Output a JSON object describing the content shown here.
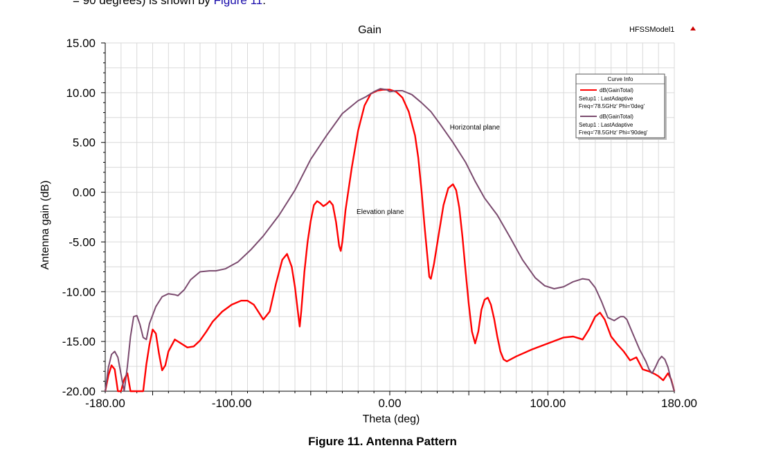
{
  "top_text": {
    "prefix": "= 90 degrees) is shown by ",
    "link": "Figure 11",
    "suffix": "."
  },
  "model_name": "HFSSModel1",
  "caption": "Figure 11. Antenna Pattern",
  "colors": {
    "elevation": "#ff0000",
    "horizontal": "#7a4a6e",
    "grid": "#d9d9d9",
    "link": "#1a0dab"
  },
  "chart_data": {
    "type": "line",
    "title": "Gain",
    "xlabel": "Theta (deg)",
    "ylabel": "Antenna gain (dB)",
    "xlim": [
      -180,
      180
    ],
    "ylim": [
      -20,
      15
    ],
    "xticks": [
      -180,
      -100,
      0,
      100,
      180
    ],
    "xtick_labels": [
      "-180.00",
      "-100.00",
      "0.00",
      "100.00",
      "180.00"
    ],
    "yticks": [
      15,
      10,
      5,
      0,
      -5,
      -10,
      -15,
      -20
    ],
    "ytick_labels": [
      "15.00",
      "10.00",
      "5.00",
      "0.00",
      "-5.00",
      "-10.00",
      "-15.00",
      "-20.00"
    ],
    "grid": true,
    "legend": {
      "title": "Curve Info",
      "placement": "top-right",
      "entries": [
        {
          "lines": [
            "dB(GainTotal)",
            "Setup1 : LastAdaptive",
            "Freq='78.5GHz' Phi='0deg'"
          ]
        },
        {
          "lines": [
            "dB(GainTotal)",
            "Setup1 : LastAdaptive",
            "Freq='78.5GHz' Phi='90deg'"
          ]
        }
      ]
    },
    "annotations": [
      {
        "text": "Horizontal plane",
        "x": 38,
        "y": 6.3
      },
      {
        "text": "Elevation plane",
        "x": -21,
        "y": -2.2
      }
    ],
    "series": [
      {
        "points": [
          [
            -180,
            -20
          ],
          [
            -178,
            -18.4
          ],
          [
            -176,
            -17.4
          ],
          [
            -174,
            -17.8
          ],
          [
            -172,
            -20
          ],
          [
            -170,
            -20
          ],
          [
            -168,
            -18.8
          ],
          [
            -166,
            -18.2
          ],
          [
            -164,
            -20
          ],
          [
            -162,
            -20
          ],
          [
            -156,
            -20
          ],
          [
            -154,
            -17.3
          ],
          [
            -152,
            -15.3
          ],
          [
            -150,
            -13.8
          ],
          [
            -148,
            -14.2
          ],
          [
            -146,
            -16.2
          ],
          [
            -144,
            -17.9
          ],
          [
            -142,
            -17.4
          ],
          [
            -140,
            -16
          ],
          [
            -136,
            -14.8
          ],
          [
            -134,
            -15
          ],
          [
            -128,
            -15.6
          ],
          [
            -124,
            -15.5
          ],
          [
            -120,
            -14.9
          ],
          [
            -116,
            -14
          ],
          [
            -112,
            -13
          ],
          [
            -106,
            -12
          ],
          [
            -100,
            -11.3
          ],
          [
            -94,
            -10.9
          ],
          [
            -90,
            -10.9
          ],
          [
            -86,
            -11.3
          ],
          [
            -82,
            -12.3
          ],
          [
            -80,
            -12.8
          ],
          [
            -76,
            -12
          ],
          [
            -72,
            -9.2
          ],
          [
            -68,
            -6.8
          ],
          [
            -65,
            -6.2
          ],
          [
            -62,
            -7.5
          ],
          [
            -60,
            -9.5
          ],
          [
            -58,
            -12.2
          ],
          [
            -57,
            -13.5
          ],
          [
            -56,
            -12
          ],
          [
            -54,
            -8
          ],
          [
            -52,
            -5
          ],
          [
            -50,
            -2.9
          ],
          [
            -48,
            -1.3
          ],
          [
            -46,
            -0.9
          ],
          [
            -44,
            -1.1
          ],
          [
            -42,
            -1.4
          ],
          [
            -40,
            -1.2
          ],
          [
            -38,
            -0.9
          ],
          [
            -36,
            -1.3
          ],
          [
            -34,
            -3
          ],
          [
            -32,
            -5.4
          ],
          [
            -31,
            -5.9
          ],
          [
            -30,
            -5
          ],
          [
            -28,
            -1.8
          ],
          [
            -24,
            2.5
          ],
          [
            -20,
            6.2
          ],
          [
            -16,
            8.7
          ],
          [
            -12,
            9.9
          ],
          [
            -8,
            10.2
          ],
          [
            -4,
            10.3
          ],
          [
            0,
            10.3
          ],
          [
            4,
            10.1
          ],
          [
            8,
            9.5
          ],
          [
            12,
            8.1
          ],
          [
            16,
            5.7
          ],
          [
            18,
            3.5
          ],
          [
            20,
            0.3
          ],
          [
            22,
            -3.4
          ],
          [
            24,
            -6.8
          ],
          [
            25,
            -8.5
          ],
          [
            26,
            -8.7
          ],
          [
            28,
            -7.2
          ],
          [
            31,
            -4.2
          ],
          [
            34,
            -1.3
          ],
          [
            37,
            0.4
          ],
          [
            40,
            0.8
          ],
          [
            42,
            0.2
          ],
          [
            44,
            -1.6
          ],
          [
            46,
            -4.5
          ],
          [
            48,
            -8
          ],
          [
            50,
            -11.3
          ],
          [
            52,
            -14
          ],
          [
            54,
            -15.2
          ],
          [
            56,
            -14
          ],
          [
            58,
            -11.8
          ],
          [
            60,
            -10.8
          ],
          [
            62,
            -10.6
          ],
          [
            64,
            -11.3
          ],
          [
            66,
            -12.7
          ],
          [
            68,
            -14.5
          ],
          [
            70,
            -16
          ],
          [
            72,
            -16.8
          ],
          [
            74,
            -17
          ],
          [
            80,
            -16.5
          ],
          [
            90,
            -15.8
          ],
          [
            100,
            -15.2
          ],
          [
            110,
            -14.6
          ],
          [
            116,
            -14.5
          ],
          [
            120,
            -14.7
          ],
          [
            122,
            -14.8
          ],
          [
            126,
            -13.8
          ],
          [
            130,
            -12.5
          ],
          [
            133,
            -12.1
          ],
          [
            136,
            -12.8
          ],
          [
            140,
            -14.5
          ],
          [
            144,
            -15.3
          ],
          [
            148,
            -16
          ],
          [
            152,
            -16.9
          ],
          [
            156,
            -16.6
          ],
          [
            160,
            -17.8
          ],
          [
            164,
            -18
          ],
          [
            168,
            -18.3
          ],
          [
            170,
            -18.5
          ],
          [
            173,
            -18.9
          ],
          [
            176,
            -18.2
          ],
          [
            178,
            -18.8
          ],
          [
            180,
            -20
          ]
        ]
      },
      {
        "points": [
          [
            -180,
            -20
          ],
          [
            -178,
            -17.6
          ],
          [
            -176,
            -16.3
          ],
          [
            -174,
            -16
          ],
          [
            -172,
            -16.6
          ],
          [
            -170,
            -18.3
          ],
          [
            -168,
            -20
          ],
          [
            -166,
            -17.5
          ],
          [
            -164,
            -14.5
          ],
          [
            -162,
            -12.5
          ],
          [
            -160,
            -12.4
          ],
          [
            -158,
            -13.3
          ],
          [
            -156,
            -14.6
          ],
          [
            -154,
            -14.8
          ],
          [
            -152,
            -13.2
          ],
          [
            -148,
            -11.5
          ],
          [
            -144,
            -10.5
          ],
          [
            -140,
            -10.2
          ],
          [
            -136,
            -10.3
          ],
          [
            -134,
            -10.4
          ],
          [
            -130,
            -9.8
          ],
          [
            -126,
            -8.8
          ],
          [
            -120,
            -8
          ],
          [
            -114,
            -7.9
          ],
          [
            -110,
            -7.9
          ],
          [
            -104,
            -7.7
          ],
          [
            -96,
            -7
          ],
          [
            -88,
            -5.8
          ],
          [
            -80,
            -4.4
          ],
          [
            -70,
            -2.3
          ],
          [
            -60,
            0.2
          ],
          [
            -50,
            3.3
          ],
          [
            -40,
            5.7
          ],
          [
            -30,
            7.9
          ],
          [
            -20,
            9.2
          ],
          [
            -15,
            9.6
          ],
          [
            -10,
            10.1
          ],
          [
            -6,
            10.4
          ],
          [
            -2,
            10.3
          ],
          [
            0,
            10.1
          ],
          [
            4,
            10.2
          ],
          [
            8,
            10.2
          ],
          [
            14,
            9.8
          ],
          [
            20,
            9
          ],
          [
            26,
            8.1
          ],
          [
            32,
            6.8
          ],
          [
            40,
            5
          ],
          [
            48,
            3
          ],
          [
            54,
            1.1
          ],
          [
            60,
            -0.6
          ],
          [
            68,
            -2.3
          ],
          [
            76,
            -4.5
          ],
          [
            84,
            -6.8
          ],
          [
            92,
            -8.6
          ],
          [
            98,
            -9.4
          ],
          [
            104,
            -9.7
          ],
          [
            110,
            -9.5
          ],
          [
            116,
            -9
          ],
          [
            122,
            -8.7
          ],
          [
            126,
            -8.8
          ],
          [
            130,
            -9.6
          ],
          [
            134,
            -11
          ],
          [
            138,
            -12.6
          ],
          [
            142,
            -12.9
          ],
          [
            146,
            -12.5
          ],
          [
            148,
            -12.5
          ],
          [
            150,
            -12.8
          ],
          [
            154,
            -14.3
          ],
          [
            158,
            -15.8
          ],
          [
            162,
            -17
          ],
          [
            164,
            -17.8
          ],
          [
            166,
            -18.2
          ],
          [
            168,
            -17.6
          ],
          [
            170,
            -16.9
          ],
          [
            172,
            -16.5
          ],
          [
            174,
            -16.8
          ],
          [
            176,
            -17.6
          ],
          [
            178,
            -18.9
          ],
          [
            180,
            -20
          ]
        ]
      }
    ]
  }
}
